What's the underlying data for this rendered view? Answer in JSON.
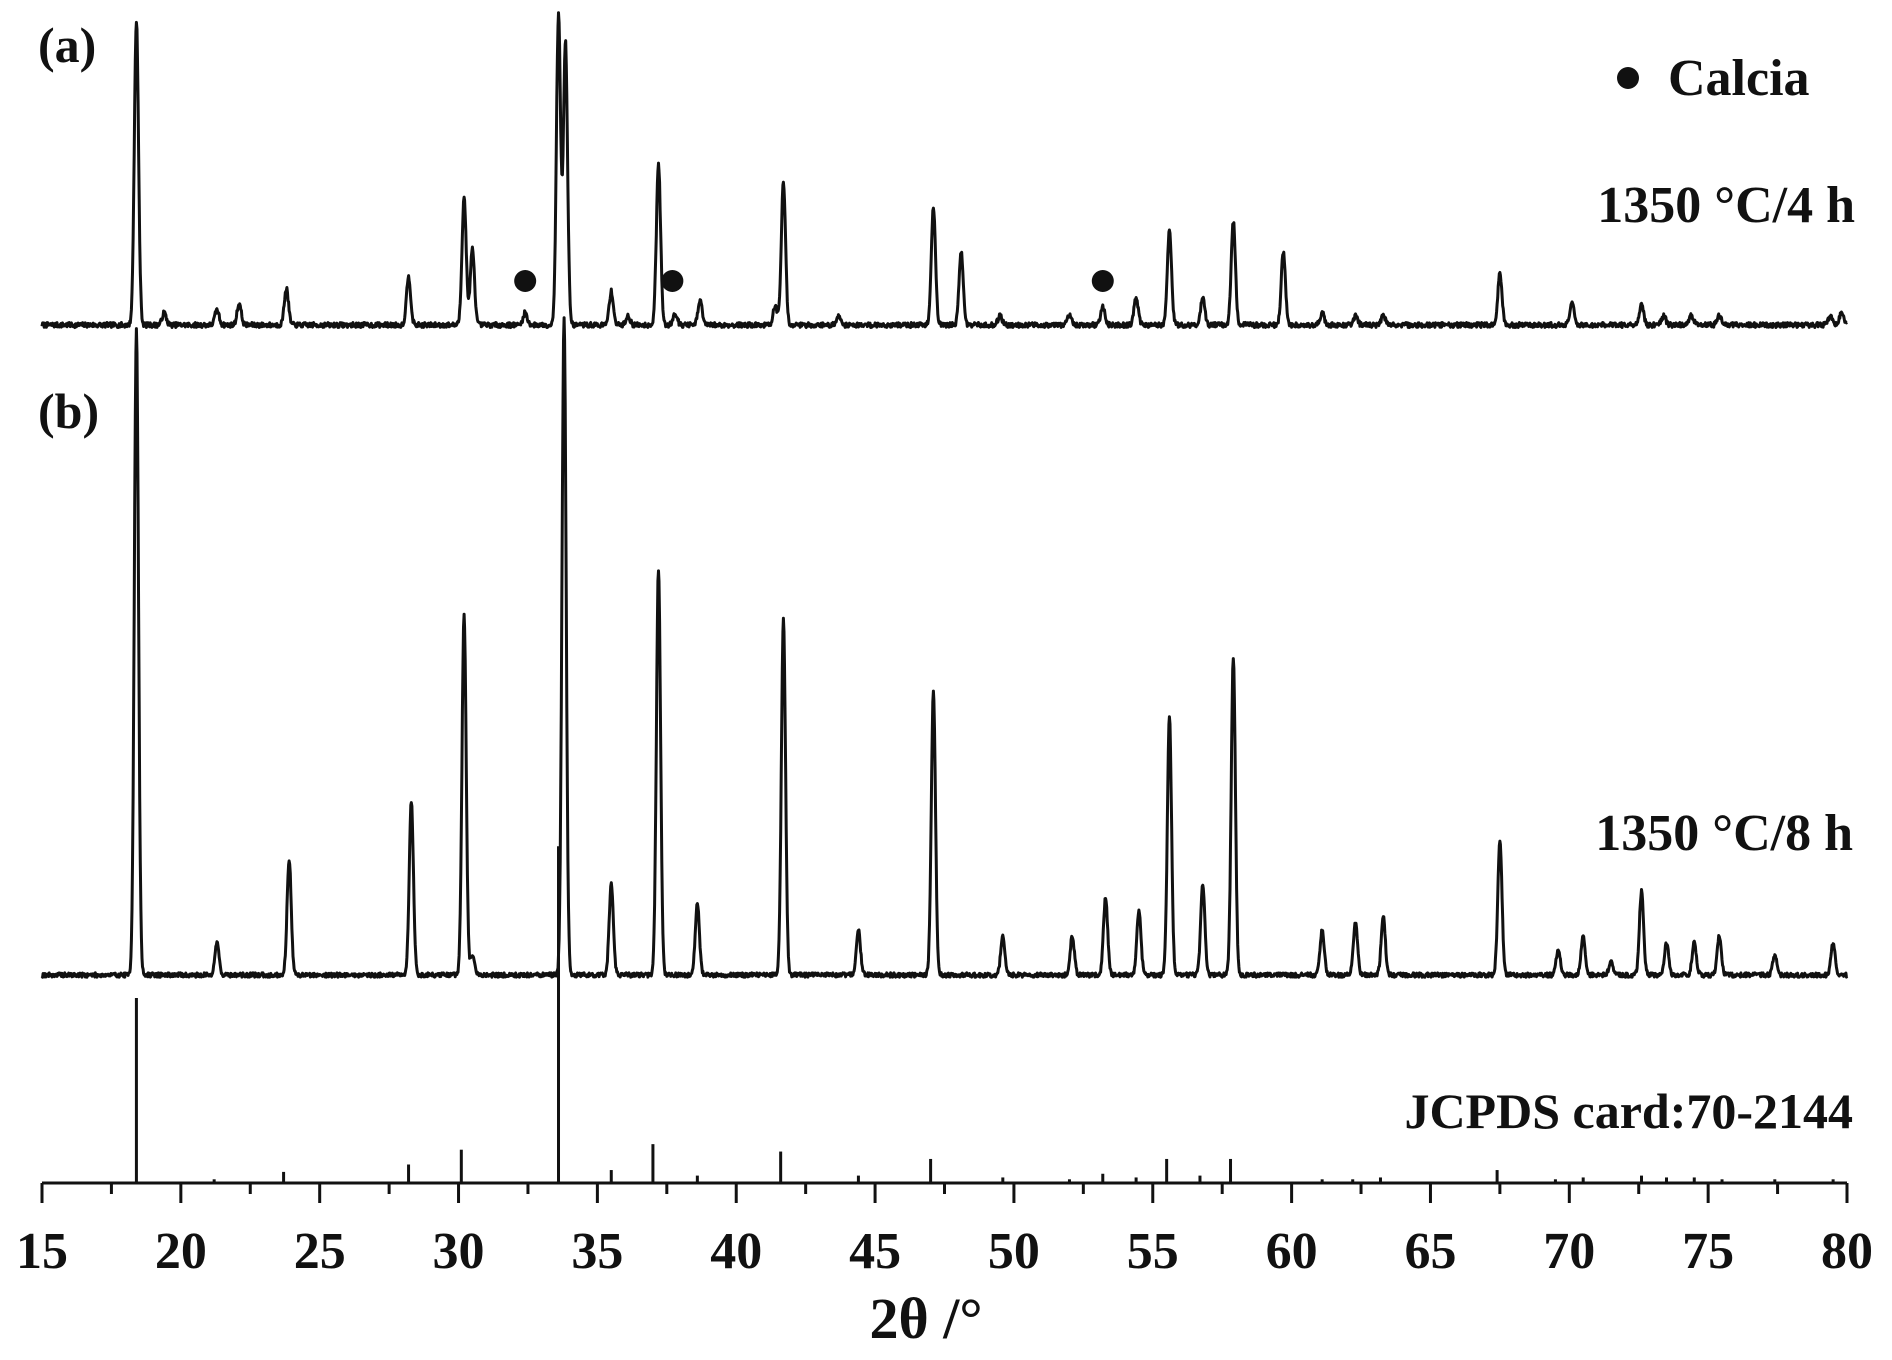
{
  "chart_data": {
    "type": "line",
    "xlabel": "2θ /°",
    "xlim": [
      15,
      80
    ],
    "x_ticks": [
      15,
      20,
      25,
      30,
      35,
      40,
      45,
      50,
      55,
      60,
      65,
      70,
      75,
      80
    ],
    "grid": false,
    "legend": {
      "placement": "top-right",
      "entries": [
        {
          "marker": "filled-circle",
          "label": "Calcia"
        }
      ]
    },
    "panels": [
      {
        "panel_label": "(a)",
        "series_label": "1350 °C/4 h",
        "calcia_markers_x": [
          32.4,
          37.7,
          53.2
        ],
        "peaks": [
          {
            "x": 18.4,
            "h": 100
          },
          {
            "x": 19.4,
            "h": 4
          },
          {
            "x": 21.3,
            "h": 5
          },
          {
            "x": 22.1,
            "h": 7
          },
          {
            "x": 23.8,
            "h": 12
          },
          {
            "x": 28.2,
            "h": 16
          },
          {
            "x": 30.2,
            "h": 42
          },
          {
            "x": 30.5,
            "h": 25
          },
          {
            "x": 32.4,
            "h": 4
          },
          {
            "x": 33.6,
            "h": 102
          },
          {
            "x": 33.85,
            "h": 93
          },
          {
            "x": 35.5,
            "h": 11
          },
          {
            "x": 36.1,
            "h": 3
          },
          {
            "x": 37.2,
            "h": 53
          },
          {
            "x": 37.8,
            "h": 4
          },
          {
            "x": 38.7,
            "h": 8
          },
          {
            "x": 41.4,
            "h": 6
          },
          {
            "x": 41.7,
            "h": 47
          },
          {
            "x": 43.7,
            "h": 3
          },
          {
            "x": 47.1,
            "h": 39
          },
          {
            "x": 48.1,
            "h": 24
          },
          {
            "x": 49.5,
            "h": 3
          },
          {
            "x": 52.0,
            "h": 3
          },
          {
            "x": 53.2,
            "h": 6
          },
          {
            "x": 54.4,
            "h": 9
          },
          {
            "x": 55.6,
            "h": 31
          },
          {
            "x": 56.8,
            "h": 9
          },
          {
            "x": 57.9,
            "h": 34
          },
          {
            "x": 59.7,
            "h": 24
          },
          {
            "x": 61.1,
            "h": 4
          },
          {
            "x": 62.3,
            "h": 3
          },
          {
            "x": 63.3,
            "h": 3
          },
          {
            "x": 67.5,
            "h": 17
          },
          {
            "x": 70.1,
            "h": 7
          },
          {
            "x": 72.6,
            "h": 7
          },
          {
            "x": 73.4,
            "h": 3
          },
          {
            "x": 74.4,
            "h": 3
          },
          {
            "x": 75.4,
            "h": 3
          },
          {
            "x": 79.4,
            "h": 3
          },
          {
            "x": 79.8,
            "h": 4
          }
        ]
      },
      {
        "panel_label": "(b)",
        "series_label": "1350 °C/8 h",
        "peaks": [
          {
            "x": 18.4,
            "h": 100
          },
          {
            "x": 21.3,
            "h": 5
          },
          {
            "x": 23.9,
            "h": 18
          },
          {
            "x": 28.3,
            "h": 27
          },
          {
            "x": 30.2,
            "h": 56
          },
          {
            "x": 30.5,
            "h": 3
          },
          {
            "x": 33.8,
            "h": 102
          },
          {
            "x": 35.5,
            "h": 14
          },
          {
            "x": 37.2,
            "h": 63
          },
          {
            "x": 38.6,
            "h": 11
          },
          {
            "x": 41.7,
            "h": 55
          },
          {
            "x": 44.4,
            "h": 7
          },
          {
            "x": 47.1,
            "h": 44
          },
          {
            "x": 49.6,
            "h": 6
          },
          {
            "x": 52.1,
            "h": 6
          },
          {
            "x": 53.3,
            "h": 12
          },
          {
            "x": 54.5,
            "h": 10
          },
          {
            "x": 55.6,
            "h": 40
          },
          {
            "x": 56.8,
            "h": 14
          },
          {
            "x": 57.9,
            "h": 49
          },
          {
            "x": 61.1,
            "h": 7
          },
          {
            "x": 62.3,
            "h": 8
          },
          {
            "x": 63.3,
            "h": 9
          },
          {
            "x": 67.5,
            "h": 21
          },
          {
            "x": 69.6,
            "h": 4
          },
          {
            "x": 70.5,
            "h": 6
          },
          {
            "x": 71.5,
            "h": 2
          },
          {
            "x": 72.6,
            "h": 13
          },
          {
            "x": 73.5,
            "h": 5
          },
          {
            "x": 74.5,
            "h": 5
          },
          {
            "x": 75.4,
            "h": 6
          },
          {
            "x": 77.4,
            "h": 3
          },
          {
            "x": 79.5,
            "h": 5
          }
        ]
      }
    ],
    "reference": {
      "label": "JCPDS card:70-2144",
      "peaks": [
        {
          "x": 18.4,
          "h": 100
        },
        {
          "x": 21.2,
          "h": 2
        },
        {
          "x": 23.7,
          "h": 6
        },
        {
          "x": 28.2,
          "h": 10
        },
        {
          "x": 30.1,
          "h": 18
        },
        {
          "x": 33.6,
          "h": 182
        },
        {
          "x": 35.5,
          "h": 7
        },
        {
          "x": 37.0,
          "h": 21
        },
        {
          "x": 38.6,
          "h": 4
        },
        {
          "x": 41.6,
          "h": 17
        },
        {
          "x": 44.4,
          "h": 4
        },
        {
          "x": 47.0,
          "h": 13
        },
        {
          "x": 49.6,
          "h": 3
        },
        {
          "x": 52.0,
          "h": 2
        },
        {
          "x": 53.2,
          "h": 5
        },
        {
          "x": 54.4,
          "h": 3
        },
        {
          "x": 55.5,
          "h": 13
        },
        {
          "x": 56.7,
          "h": 4
        },
        {
          "x": 57.8,
          "h": 13
        },
        {
          "x": 61.1,
          "h": 2
        },
        {
          "x": 62.2,
          "h": 2
        },
        {
          "x": 63.2,
          "h": 3
        },
        {
          "x": 67.4,
          "h": 7
        },
        {
          "x": 69.5,
          "h": 2
        },
        {
          "x": 70.5,
          "h": 3
        },
        {
          "x": 72.6,
          "h": 4
        },
        {
          "x": 73.5,
          "h": 3
        },
        {
          "x": 74.5,
          "h": 3
        },
        {
          "x": 75.5,
          "h": 2
        },
        {
          "x": 77.4,
          "h": 2
        },
        {
          "x": 79.5,
          "h": 2
        }
      ]
    }
  },
  "colors": {
    "ink": "#111111",
    "background": "#ffffff"
  }
}
